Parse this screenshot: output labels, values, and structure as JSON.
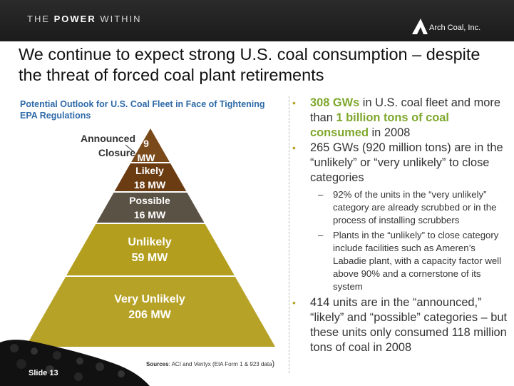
{
  "header": {
    "tagline_part1": "THE ",
    "tagline_bold": "POWER",
    "tagline_part2": " WITHIN",
    "logo_text": "Arch Coal, Inc."
  },
  "slide": {
    "title": "We continue to expect strong U.S. coal consumption – despite the threat of forced coal plant retirements",
    "number": "Slide 13"
  },
  "chart": {
    "title": "Potential Outlook for U.S. Coal Fleet in Face of Tightening EPA Regulations",
    "callout": "Announced Closure",
    "levels": [
      {
        "label": "9",
        "value_label": "MW"
      },
      {
        "label": "Likely",
        "value_label": "18 MW"
      },
      {
        "label": "Possible",
        "value_label": "16 MW"
      },
      {
        "label": "Unlikely",
        "value_label": "59 MW"
      },
      {
        "label": "Very Unlikely",
        "value_label": "206 MW"
      }
    ],
    "colors": {
      "announced": "#7a4a1a",
      "likely": "#6b3b12",
      "possible": "#5a5245",
      "unlikely": "#b39e1d",
      "very_unlikely": "#b7a228"
    },
    "source_label": "Sources",
    "source_text": ": ACI and Ventyx (EIA Form 1 & 923 data",
    "source_close": ")"
  },
  "bullets": {
    "b1_bold1": "308 GWs",
    "b1_text1": " in U.S. coal fleet and more than ",
    "b1_bold2": "1 billion tons of coal consumed",
    "b1_text2": " in 2008",
    "b2_text": "265 GWs (920 million tons) are in the “unlikely” or “very unlikely” to close categories",
    "b2_sub1": "92% of the units in the “very unlikely” category are already scrubbed or in the process of installing scrubbers",
    "b2_sub2": "Plants in the “unlikely” to close category include facilities such as Ameren’s Labadie plant, with a capacity factor well above 90% and a cornerstone of its system",
    "b3_text": "414 units are in the “announced,” “likely” and “possible” categories – but these units only consumed 118 million tons of coal in 2008",
    "bullet_char": "•",
    "dash_char": "–"
  }
}
